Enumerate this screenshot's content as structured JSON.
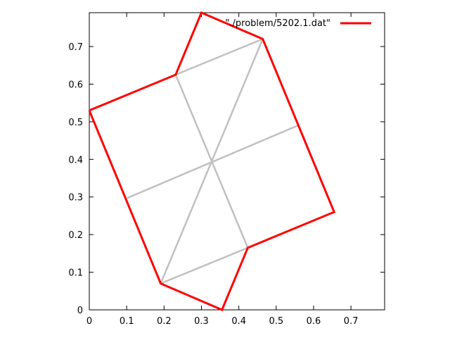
{
  "chart_data": {
    "type": "line",
    "title": "",
    "xlabel": "",
    "ylabel": "",
    "xlim": [
      0,
      0.79
    ],
    "ylim": [
      0,
      0.79
    ],
    "xticks": [
      "0",
      "0.1",
      "0.2",
      "0.3",
      "0.4",
      "0.5",
      "0.6",
      "0.7"
    ],
    "yticks": [
      "0",
      "0.1",
      "0.2",
      "0.3",
      "0.4",
      "0.5",
      "0.6",
      "0.7"
    ],
    "grid": false,
    "legend": "top-right",
    "series": [
      {
        "name": "\"./problem/5202.1.dat\"",
        "color": "#ff0000",
        "points": [
          [
            0.0,
            0.53
          ],
          [
            0.231,
            0.625
          ],
          [
            0.3,
            0.79
          ],
          [
            0.464,
            0.72
          ],
          [
            0.655,
            0.26
          ],
          [
            0.424,
            0.165
          ],
          [
            0.355,
            0.0
          ],
          [
            0.191,
            0.07
          ],
          [
            0.0,
            0.53
          ]
        ]
      }
    ],
    "guides": {
      "color": "#c0c0c0",
      "segments": [
        [
          [
            0.231,
            0.625
          ],
          [
            0.464,
            0.72
          ]
        ],
        [
          [
            0.231,
            0.625
          ],
          [
            0.424,
            0.165
          ]
        ],
        [
          [
            0.464,
            0.72
          ],
          [
            0.191,
            0.07
          ]
        ],
        [
          [
            0.101,
            0.297
          ],
          [
            0.558,
            0.49
          ]
        ],
        [
          [
            0.191,
            0.07
          ],
          [
            0.424,
            0.165
          ]
        ]
      ]
    }
  }
}
